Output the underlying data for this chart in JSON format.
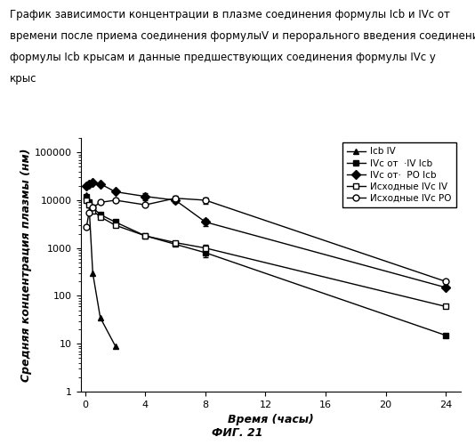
{
  "xlabel": "Время (часы)",
  "ylabel": "Средняя концентрация плазмы (нм)",
  "fig_label": "ФИГ. 21",
  "title_lines": [
    "График зависимости концентрации в плазме соединения формулы Icb и IVc от",
    "времени после приема соединения формулыV и перорального введения соединения",
    "формулы Icb крысам и данные предшествующих соединения формулы IVc у",
    "крыс"
  ],
  "series": [
    {
      "label": "Icb IV",
      "marker": "^",
      "filled": true,
      "x": [
        0.083,
        0.25,
        0.5,
        1.0,
        2.0
      ],
      "y": [
        13000,
        8000,
        300,
        35,
        9
      ],
      "yerr": [
        null,
        null,
        null,
        null,
        null
      ]
    },
    {
      "label": "IVc от  ·IV Icb",
      "marker": "s",
      "filled": true,
      "x": [
        0.083,
        0.25,
        0.5,
        1.0,
        2.0,
        4.0,
        6.0,
        8.0,
        24.0
      ],
      "y": [
        12000,
        9000,
        7000,
        5000,
        3500,
        1800,
        1200,
        800,
        15
      ],
      "yerr": [
        null,
        null,
        null,
        null,
        null,
        null,
        null,
        150,
        null
      ]
    },
    {
      "label": "IVc от· PO Icb",
      "marker": "D",
      "filled": true,
      "x": [
        0.083,
        0.25,
        0.5,
        1.0,
        2.0,
        4.0,
        6.0,
        8.0,
        24.0
      ],
      "y": [
        20000,
        22000,
        24000,
        22000,
        15000,
        12000,
        10000,
        3500,
        150
      ],
      "yerr": [
        null,
        null,
        null,
        null,
        null,
        2000,
        1200,
        600,
        null
      ]
    },
    {
      "label": "Исходные IVc IV",
      "marker": "s",
      "filled": false,
      "x": [
        0.083,
        0.25,
        0.5,
        1.0,
        2.0,
        4.0,
        6.0,
        8.0,
        24.0
      ],
      "y": [
        10000,
        8000,
        6000,
        4500,
        3000,
        1800,
        1300,
        1000,
        60
      ],
      "yerr": [
        null,
        null,
        null,
        null,
        null,
        null,
        null,
        180,
        null
      ]
    },
    {
      "label": "Исходные IVc PO",
      "marker": "o",
      "filled": false,
      "x": [
        0.083,
        0.25,
        0.5,
        1.0,
        2.0,
        4.0,
        6.0,
        8.0,
        24.0
      ],
      "y": [
        2800,
        5500,
        7000,
        9000,
        10000,
        8000,
        11000,
        10000,
        200
      ],
      "yerr": [
        null,
        null,
        null,
        null,
        null,
        null,
        1500,
        1500,
        null
      ]
    }
  ],
  "xticks": [
    0,
    4,
    8,
    12,
    16,
    20,
    24
  ],
  "ylim_low": 1,
  "ylim_high": 200000,
  "xlim_low": -0.3,
  "xlim_high": 25,
  "fontsize_title": 8.5,
  "fontsize_axis_label": 9,
  "fontsize_tick": 8,
  "fontsize_legend": 7.5,
  "fontsize_figlabel": 9,
  "legend_labels": [
    "Icb IV",
    "IVc от  ·IV Icb",
    "IVc от·  PO Icb",
    "Исходные IVc IV",
    "Исходные IVc PO"
  ]
}
